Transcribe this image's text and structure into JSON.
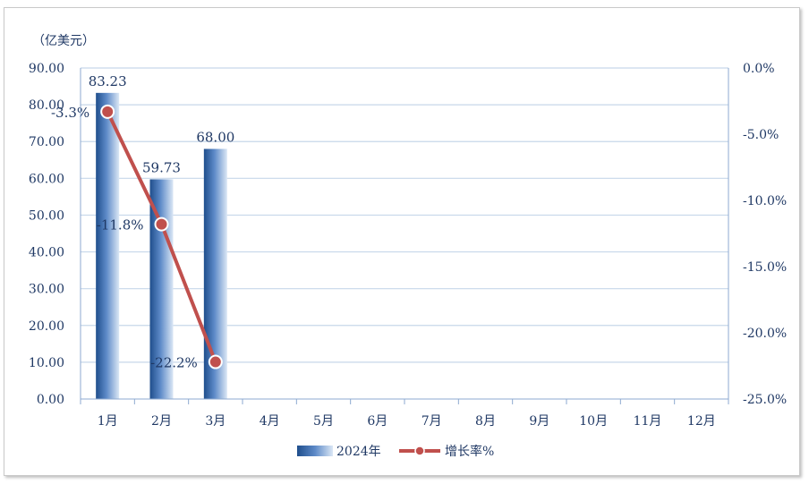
{
  "chart_data": {
    "type": "bar",
    "unit_label": "（亿美元）",
    "categories": [
      "1月",
      "2月",
      "3月",
      "4月",
      "5月",
      "6月",
      "7月",
      "8月",
      "9月",
      "10月",
      "11月",
      "12月"
    ],
    "series": [
      {
        "name": "2024年",
        "type": "bar",
        "axis": "left",
        "values": [
          83.23,
          59.73,
          68.0,
          null,
          null,
          null,
          null,
          null,
          null,
          null,
          null,
          null
        ],
        "labels": [
          "83.23",
          "59.73",
          "68.00"
        ],
        "color": "#2e5c9a"
      },
      {
        "name": "增长率%",
        "type": "line",
        "axis": "right",
        "values": [
          -3.3,
          -11.8,
          -22.2,
          null,
          null,
          null,
          null,
          null,
          null,
          null,
          null,
          null
        ],
        "labels": [
          "-3.3%",
          "-11.8%",
          "-22.2%"
        ],
        "color": "#c0504d"
      }
    ],
    "y_left": {
      "min": 0,
      "max": 90,
      "step": 10,
      "tick_labels": [
        "0.00",
        "10.00",
        "20.00",
        "30.00",
        "40.00",
        "50.00",
        "60.00",
        "70.00",
        "80.00",
        "90.00"
      ]
    },
    "y_right": {
      "min": -25,
      "max": 0,
      "step": 5,
      "tick_labels": [
        "-25.0%",
        "-20.0%",
        "-15.0%",
        "-10.0%",
        "-5.0%",
        "0.0%"
      ]
    },
    "grid": true,
    "legend_position": "bottom"
  }
}
